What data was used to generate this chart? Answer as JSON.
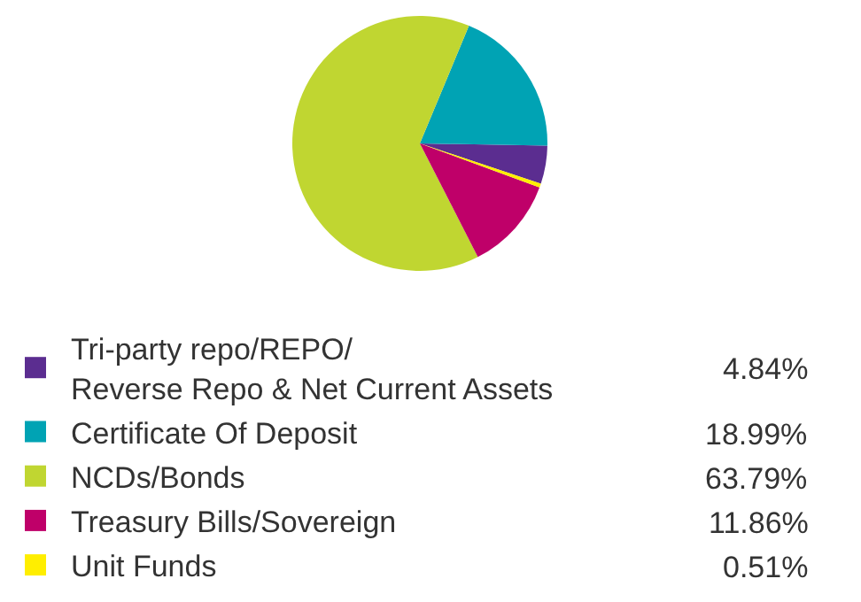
{
  "chart_data": {
    "type": "pie",
    "categories": [
      "Tri-party repo/REPO/\nReverse Repo & Net Current Assets",
      "Certificate Of Deposit",
      "NCDs/Bonds",
      "Treasury Bills/Sovereign",
      "Unit Funds"
    ],
    "values": [
      4.84,
      18.99,
      63.79,
      11.86,
      0.51
    ],
    "colors": [
      "#5b2d90",
      "#00a3b4",
      "#c0d631",
      "#bf0069",
      "#ffee00"
    ],
    "value_labels": [
      "4.84%",
      "18.99%",
      "63.79%",
      "11.86%",
      "0.51%"
    ],
    "legend": "bottom"
  }
}
